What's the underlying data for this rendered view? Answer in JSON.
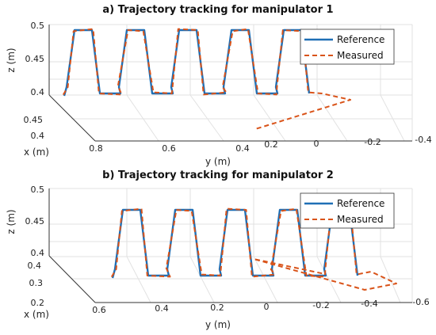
{
  "chart_data": [
    {
      "type": "line",
      "title": "a) Trajectory tracking for manipulator 1",
      "xlabel": "x (m)",
      "ylabel": "y (m)",
      "zlabel": "z (m)",
      "x_ticks": [
        "0.4",
        "0.45"
      ],
      "y_ticks": [
        "0.8",
        "0.6",
        "0.4",
        "0.2",
        "0",
        "-0.2",
        "-0.4"
      ],
      "z_ticks": [
        "0.4",
        "0.45",
        "0.5"
      ],
      "legend": [
        "Reference",
        "Measured"
      ],
      "legend_position": "top-right",
      "grid": true,
      "num_cycles": 5,
      "z_range": [
        0.395,
        0.495
      ],
      "y_range_reference": [
        0.8,
        -0.05
      ],
      "colors": {
        "reference": "#1f6fb5",
        "measured": "#d95319"
      }
    },
    {
      "type": "line",
      "title": "b) Trajectory tracking for manipulator 2",
      "xlabel": "x (m)",
      "ylabel": "y (m)",
      "zlabel": "z (m)",
      "x_ticks": [
        "0.2",
        "0.3",
        "0.4"
      ],
      "y_ticks": [
        "0.6",
        "0.4",
        "0.2",
        "0",
        "-0.2",
        "-0.4",
        "-0.6"
      ],
      "z_ticks": [
        "0.4",
        "0.45",
        "0.5"
      ],
      "legend": [
        "Reference",
        "Measured"
      ],
      "legend_position": "top-right",
      "grid": true,
      "num_cycles": 5,
      "z_range": [
        0.395,
        0.49
      ],
      "y_range_reference": [
        0.6,
        -0.3
      ],
      "colors": {
        "reference": "#1f6fb5",
        "measured": "#d95319"
      }
    }
  ]
}
